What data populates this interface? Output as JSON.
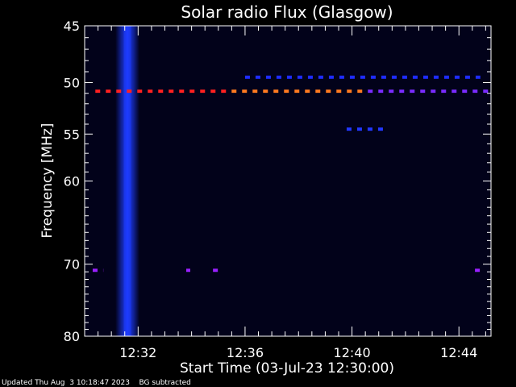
{
  "chart_data": {
    "type": "heatmap",
    "title": "Solar radio Flux (Glasgow)",
    "xlabel": "Start Time (03-Jul-23 12:30:00)",
    "ylabel": "Frequency [MHz]",
    "x_unit": "minutes after 12:30:00",
    "xlim": [
      0,
      15.2
    ],
    "ylim": [
      45,
      80
    ],
    "y_scale": "log",
    "x_ticks": [
      {
        "value": 2,
        "label": "12:32"
      },
      {
        "value": 6,
        "label": "12:36"
      },
      {
        "value": 10,
        "label": "12:40"
      },
      {
        "value": 14,
        "label": "12:44"
      }
    ],
    "y_ticks": [
      45,
      50,
      55,
      60,
      70,
      80
    ],
    "background_color": "#02021a",
    "features": [
      {
        "kind": "burst",
        "time_start": 1.15,
        "time_end": 2.05,
        "freq_start": 45,
        "freq_end": 80,
        "color": "#1e3cff",
        "intensity": "high"
      },
      {
        "kind": "narrowband",
        "freq": 50.8,
        "time_start": 0.4,
        "time_end": 15.2,
        "colors": [
          "#ff2020",
          "#ff7a20",
          "#7a2bff"
        ]
      },
      {
        "kind": "narrowband",
        "freq": 49.5,
        "time_start": 6.0,
        "time_end": 14.8,
        "colors": [
          "#1e2cff"
        ]
      },
      {
        "kind": "narrowband",
        "freq": 54.5,
        "time_start": 9.8,
        "time_end": 11.2,
        "colors": [
          "#2238ff"
        ]
      },
      {
        "kind": "narrowband",
        "freq": 70.8,
        "time_start": 0.3,
        "time_end": 0.7,
        "colors": [
          "#9a20ff"
        ]
      },
      {
        "kind": "narrowband",
        "freq": 70.8,
        "time_start": 3.8,
        "time_end": 3.95,
        "colors": [
          "#9a20ff"
        ]
      },
      {
        "kind": "narrowband",
        "freq": 70.8,
        "time_start": 4.8,
        "time_end": 5.1,
        "colors": [
          "#9a20ff"
        ]
      },
      {
        "kind": "narrowband",
        "freq": 70.8,
        "time_start": 14.6,
        "time_end": 14.8,
        "colors": [
          "#9a20ff"
        ]
      }
    ]
  },
  "footer": {
    "updated": "Updated Thu Aug  3 10:18:47 2023",
    "note": "BG subtracted"
  }
}
